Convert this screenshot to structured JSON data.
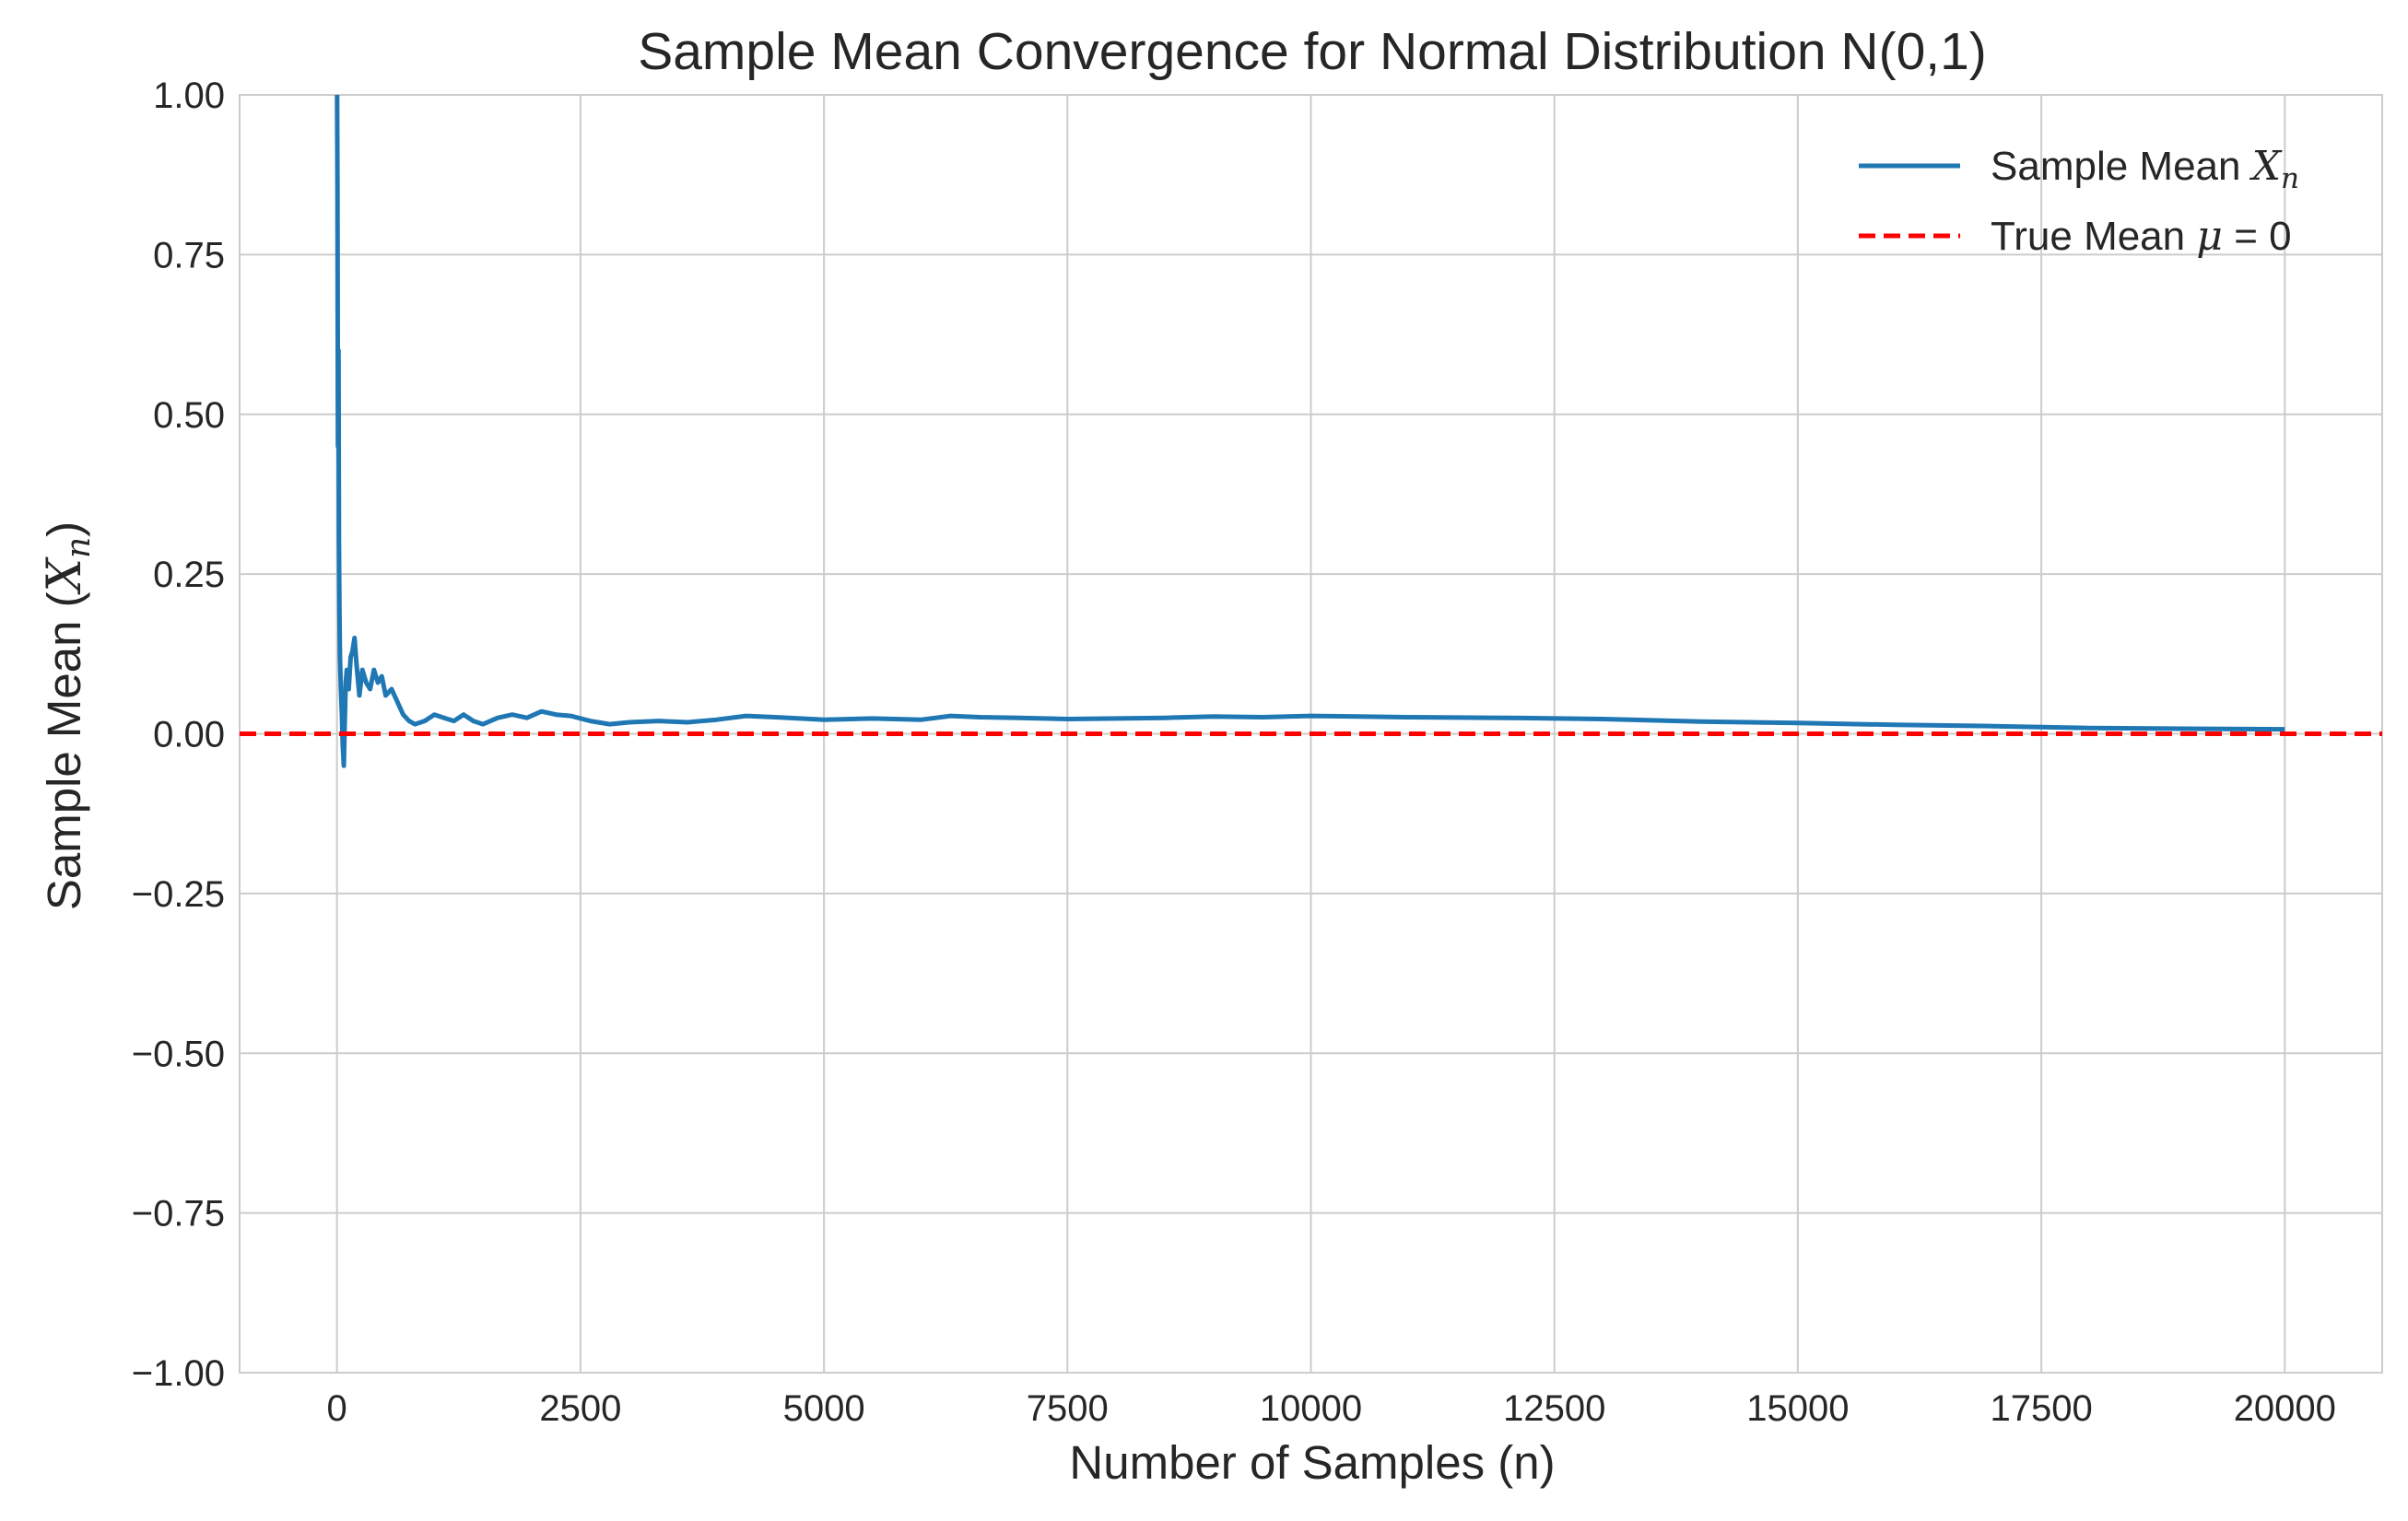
{
  "chart_data": {
    "type": "line",
    "title": "Sample Mean Convergence for Normal Distribution N(0,1)",
    "xlabel": "Number of Samples (n)",
    "ylabel": {
      "text": "Sample Mean (",
      "symbol": "X",
      "sub": "n",
      "close": ")"
    },
    "xlim": [
      -1000,
      21000
    ],
    "ylim": [
      -1.0,
      1.0
    ],
    "xticks": [
      0,
      2500,
      5000,
      7500,
      10000,
      12500,
      15000,
      17500,
      20000
    ],
    "xtick_labels": [
      "0",
      "2500",
      "5000",
      "7500",
      "10000",
      "12500",
      "15000",
      "17500",
      "20000"
    ],
    "yticks": [
      -1.0,
      -0.75,
      -0.5,
      -0.25,
      0.0,
      0.25,
      0.5,
      0.75,
      1.0
    ],
    "ytick_labels": [
      "−1.00",
      "−0.75",
      "−0.50",
      "−0.25",
      "0.00",
      "0.25",
      "0.50",
      "0.75",
      "1.00"
    ],
    "grid": true,
    "legend_position": "top-right",
    "series": [
      {
        "name": "Sample Mean",
        "name_symbol": "X",
        "name_sub": "n",
        "color": "#1f77b4",
        "style": "solid",
        "x": [
          1,
          5,
          10,
          15,
          20,
          25,
          30,
          40,
          50,
          60,
          70,
          80,
          90,
          100,
          120,
          140,
          160,
          180,
          200,
          230,
          260,
          300,
          340,
          380,
          420,
          460,
          500,
          560,
          620,
          680,
          740,
          800,
          900,
          1000,
          1100,
          1200,
          1300,
          1400,
          1500,
          1650,
          1800,
          1950,
          2100,
          2250,
          2400,
          2600,
          2800,
          3000,
          3300,
          3600,
          3900,
          4200,
          4500,
          5000,
          5500,
          6000,
          6300,
          6600,
          7000,
          7500,
          8000,
          8500,
          9000,
          9500,
          10000,
          10500,
          11000,
          12000,
          13000,
          14000,
          15000,
          16000,
          17000,
          18000,
          19000,
          20000
        ],
        "y": [
          1.0,
          0.85,
          0.45,
          0.6,
          0.3,
          0.2,
          0.12,
          0.07,
          0.03,
          -0.02,
          -0.05,
          0.02,
          0.08,
          0.1,
          0.07,
          0.12,
          0.13,
          0.15,
          0.11,
          0.06,
          0.1,
          0.08,
          0.07,
          0.1,
          0.08,
          0.09,
          0.06,
          0.07,
          0.05,
          0.03,
          0.02,
          0.015,
          0.02,
          0.03,
          0.025,
          0.02,
          0.03,
          0.02,
          0.015,
          0.025,
          0.03,
          0.025,
          0.035,
          0.03,
          0.028,
          0.02,
          0.015,
          0.018,
          0.02,
          0.018,
          0.022,
          0.028,
          0.026,
          0.022,
          0.024,
          0.022,
          0.028,
          0.026,
          0.025,
          0.023,
          0.024,
          0.025,
          0.027,
          0.026,
          0.028,
          0.027,
          0.026,
          0.025,
          0.023,
          0.019,
          0.017,
          0.014,
          0.012,
          0.009,
          0.008,
          0.007
        ]
      },
      {
        "name": "True Mean",
        "name_symbol": "μ",
        "name_suffix": " = 0",
        "color": "#ff0000",
        "style": "dashed",
        "y_constant": 0
      }
    ]
  }
}
